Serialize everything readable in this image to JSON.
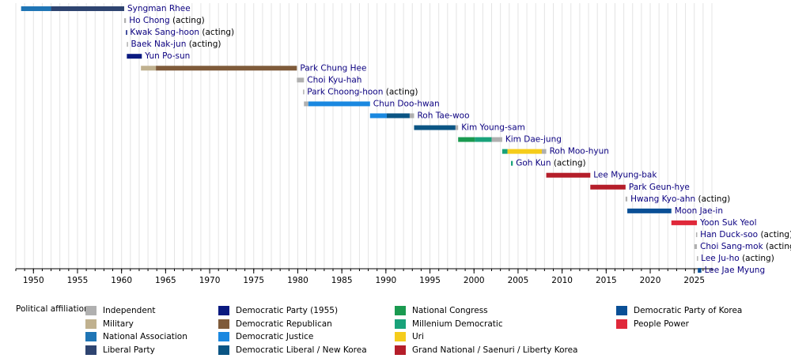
{
  "chart_data": {
    "type": "timeline",
    "xlim": [
      1948,
      2027
    ],
    "xticks": [
      1950,
      1955,
      1960,
      1965,
      1970,
      1975,
      1980,
      1985,
      1990,
      1995,
      2000,
      2005,
      2010,
      2015,
      2020,
      2025
    ],
    "xminorticks": [
      1948,
      1949,
      1950,
      1951,
      1952,
      1953,
      1954,
      1955,
      1956,
      1957,
      1958,
      1959,
      1960,
      1961,
      1962,
      1963,
      1964,
      1965,
      1966,
      1967,
      1968,
      1969,
      1970,
      1971,
      1972,
      1973,
      1974,
      1975,
      1976,
      1977,
      1978,
      1979,
      1980,
      1981,
      1982,
      1983,
      1984,
      1985,
      1986,
      1987,
      1988,
      1989,
      1990,
      1991,
      1992,
      1993,
      1994,
      1995,
      1996,
      1997,
      1998,
      1999,
      2000,
      2001,
      2002,
      2003,
      2004,
      2005,
      2006,
      2007,
      2008,
      2009,
      2010,
      2011,
      2012,
      2013,
      2014,
      2015,
      2016,
      2017,
      2018,
      2019,
      2020,
      2021,
      2022,
      2023,
      2024,
      2025,
      2026,
      2027
    ],
    "grid": true,
    "rows": [
      {
        "name": "Syngman Rhee",
        "segments": [
          {
            "start": 1948.6,
            "end": 1952.0,
            "color": "#1f75b5"
          },
          {
            "start": 1952.0,
            "end": 1960.3,
            "color": "#2e4470"
          }
        ]
      },
      {
        "name": "Ho Chong",
        "note": "(acting)",
        "segments": [
          {
            "start": 1960.3,
            "end": 1960.5,
            "color": "#b0b0b0"
          }
        ]
      },
      {
        "name": "Kwak Sang-hoon",
        "note": "(acting)",
        "segments": [
          {
            "start": 1960.5,
            "end": 1960.6,
            "color": "#0a1a80"
          }
        ]
      },
      {
        "name": "Baek Nak-jun",
        "note": "(acting)",
        "segments": [
          {
            "start": 1960.6,
            "end": 1960.7,
            "color": "#b0b0b0"
          }
        ]
      },
      {
        "name": "Yun Po-sun",
        "segments": [
          {
            "start": 1960.6,
            "end": 1962.3,
            "color": "#0a1a80"
          }
        ]
      },
      {
        "name": "Park Chung Hee",
        "segments": [
          {
            "start": 1962.2,
            "end": 1963.9,
            "color": "#c0b18f"
          },
          {
            "start": 1963.9,
            "end": 1979.9,
            "color": "#7f5b3a"
          }
        ]
      },
      {
        "name": "Choi Kyu-hah",
        "segments": [
          {
            "start": 1979.9,
            "end": 1980.7,
            "color": "#b0b0b0"
          }
        ]
      },
      {
        "name": "Park Choong-hoon",
        "note": "(acting)",
        "segments": [
          {
            "start": 1980.6,
            "end": 1980.7,
            "color": "#b0b0b0"
          }
        ]
      },
      {
        "name": "Chun Doo-hwan",
        "segments": [
          {
            "start": 1980.7,
            "end": 1981.2,
            "color": "#b0b0b0"
          },
          {
            "start": 1981.2,
            "end": 1988.2,
            "color": "#1a88e0"
          }
        ]
      },
      {
        "name": "Roh Tae-woo",
        "segments": [
          {
            "start": 1988.2,
            "end": 1990.1,
            "color": "#1a88e0"
          },
          {
            "start": 1990.1,
            "end": 1992.7,
            "color": "#0b5584"
          },
          {
            "start": 1992.7,
            "end": 1993.2,
            "color": "#b0b0b0"
          }
        ]
      },
      {
        "name": "Kim Young-sam",
        "segments": [
          {
            "start": 1993.2,
            "end": 1997.9,
            "color": "#0b5584"
          },
          {
            "start": 1997.9,
            "end": 1998.2,
            "color": "#b0b0b0"
          }
        ]
      },
      {
        "name": "Kim Dae-jung",
        "segments": [
          {
            "start": 1998.2,
            "end": 2000.1,
            "color": "#1a9a50"
          },
          {
            "start": 2000.1,
            "end": 2002.0,
            "color": "#19a27a"
          },
          {
            "start": 2002.0,
            "end": 2003.2,
            "color": "#b0b0b0"
          }
        ]
      },
      {
        "name": "Roh Moo-hyun",
        "segments": [
          {
            "start": 2003.2,
            "end": 2003.8,
            "color": "#19a27a"
          },
          {
            "start": 2003.8,
            "end": 2007.7,
            "color": "#f5cc1b"
          },
          {
            "start": 2007.7,
            "end": 2008.2,
            "color": "#b0b0b0"
          }
        ]
      },
      {
        "name": "Goh Kun",
        "note": "(acting)",
        "segments": [
          {
            "start": 2004.2,
            "end": 2004.4,
            "color": "#19a27a"
          }
        ]
      },
      {
        "name": "Lee Myung-bak",
        "segments": [
          {
            "start": 2008.2,
            "end": 2013.2,
            "color": "#b51e2a"
          }
        ]
      },
      {
        "name": "Park Geun-hye",
        "segments": [
          {
            "start": 2013.2,
            "end": 2017.2,
            "color": "#b51e2a"
          }
        ]
      },
      {
        "name": "Hwang Kyo-ahn",
        "note": "(acting)",
        "segments": [
          {
            "start": 2017.2,
            "end": 2017.4,
            "color": "#b0b0b0"
          }
        ]
      },
      {
        "name": "Moon Jae-in",
        "segments": [
          {
            "start": 2017.4,
            "end": 2022.4,
            "color": "#0a4f96"
          }
        ]
      },
      {
        "name": "Yoon Suk Yeol",
        "segments": [
          {
            "start": 2022.4,
            "end": 2025.3,
            "color": "#e0283a"
          }
        ]
      },
      {
        "name": "Han Duck-soo",
        "note": "(acting)",
        "segments": [
          {
            "start": 2025.2,
            "end": 2025.3,
            "color": "#b0b0b0"
          }
        ]
      },
      {
        "name": "Choi Sang-mok",
        "note": "(acting)",
        "segments": [
          {
            "start": 2025.0,
            "end": 2025.3,
            "color": "#b0b0b0"
          }
        ]
      },
      {
        "name": "Lee Ju-ho",
        "note": "(acting)",
        "segments": [
          {
            "start": 2025.3,
            "end": 2025.4,
            "color": "#b0b0b0"
          }
        ]
      },
      {
        "name": "Lee Jae Myung",
        "segments": [
          {
            "start": 2025.4,
            "end": 2025.8,
            "color": "#0a4f96"
          }
        ]
      }
    ],
    "legend_title": "Political affiliation:",
    "legend": [
      {
        "name": "Independent",
        "color": "#b0b0b0"
      },
      {
        "name": "Military",
        "color": "#c0b18f"
      },
      {
        "name": "National Association",
        "color": "#1f75b5"
      },
      {
        "name": "Liberal Party",
        "color": "#2e4470"
      },
      {
        "name": "Democratic Party (1955)",
        "color": "#0a1a80"
      },
      {
        "name": "Democratic Republican",
        "color": "#7f5b3a"
      },
      {
        "name": "Democratic Justice",
        "color": "#1a88e0"
      },
      {
        "name": "Democratic Liberal / New Korea",
        "color": "#0b5584"
      },
      {
        "name": "National Congress",
        "color": "#1a9a50"
      },
      {
        "name": "Millenium Democratic",
        "color": "#19a27a"
      },
      {
        "name": "Uri",
        "color": "#f5cc1b"
      },
      {
        "name": "Grand National / Saenuri / Liberty Korea",
        "color": "#b51e2a"
      },
      {
        "name": "Democratic Party of Korea",
        "color": "#0a4f96"
      },
      {
        "name": "People Power",
        "color": "#e0283a"
      }
    ]
  }
}
